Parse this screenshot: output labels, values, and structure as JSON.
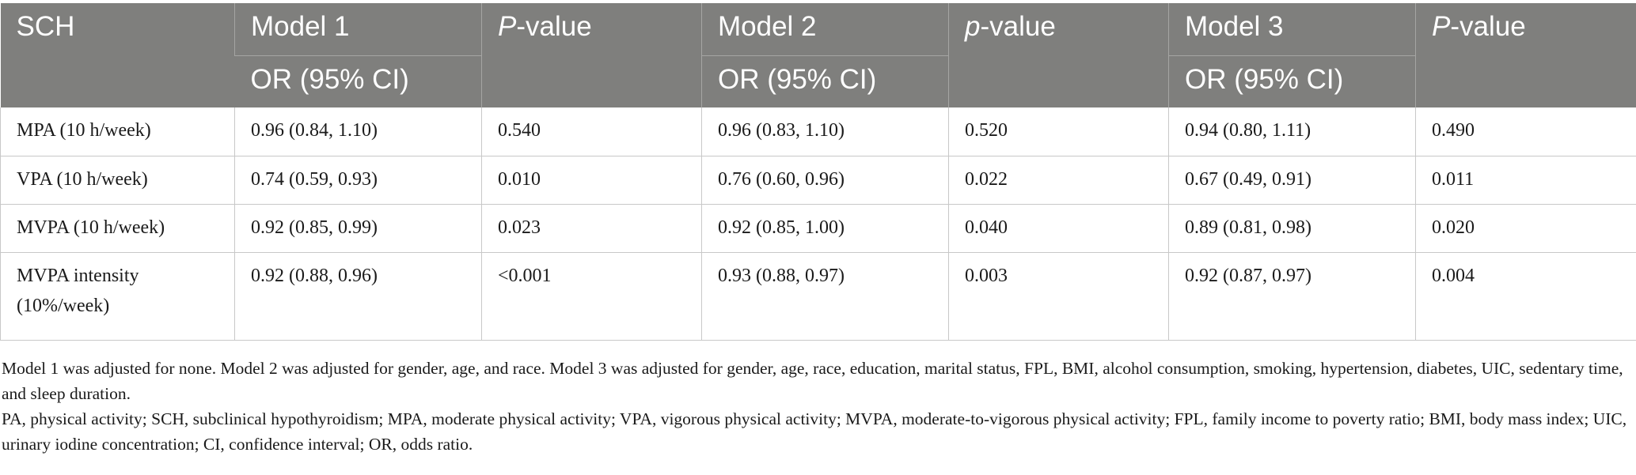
{
  "table": {
    "headers": {
      "row_label": "SCH",
      "model1": "Model 1",
      "p1_italic": "P",
      "p1_rest": "-value",
      "model2": "Model 2",
      "p2_italic": "p",
      "p2_rest": "-value",
      "model3": "Model 3",
      "p3_italic": "P",
      "p3_rest": "-value",
      "or_label_1": "OR (95% CI)",
      "or_label_2": "OR (95% CI)",
      "or_label_3": "OR (95% CI)"
    },
    "rows": [
      {
        "label": "MPA (10 h/week)",
        "label_line2": "",
        "m1_or": "0.96 (0.84, 1.10)",
        "m1_p": "0.540",
        "m2_or": "0.96 (0.83, 1.10)",
        "m2_p": "0.520",
        "m3_or": "0.94 (0.80, 1.11)",
        "m3_p": "0.490"
      },
      {
        "label": "VPA (10 h/week)",
        "label_line2": "",
        "m1_or": "0.74 (0.59, 0.93)",
        "m1_p": "0.010",
        "m2_or": "0.76 (0.60, 0.96)",
        "m2_p": "0.022",
        "m3_or": "0.67 (0.49, 0.91)",
        "m3_p": "0.011"
      },
      {
        "label": "MVPA (10 h/week)",
        "label_line2": "",
        "m1_or": "0.92 (0.85, 0.99)",
        "m1_p": "0.023",
        "m2_or": "0.92 (0.85, 1.00)",
        "m2_p": "0.040",
        "m3_or": "0.89 (0.81, 0.98)",
        "m3_p": "0.020"
      },
      {
        "label": "MVPA intensity",
        "label_line2": "(10%/week)",
        "m1_or": "0.92 (0.88, 0.96)",
        "m1_p": "<0.001",
        "m2_or": "0.93 (0.88, 0.97)",
        "m2_p": "0.003",
        "m3_or": "0.92 (0.87, 0.97)",
        "m3_p": "0.004"
      }
    ]
  },
  "notes": {
    "note1": "Model 1 was adjusted for none. Model 2 was adjusted for gender, age, and race. Model 3 was adjusted for gender, age, race, education, marital status, FPL, BMI, alcohol consumption, smoking, hypertension, diabetes, UIC, sedentary time, and sleep duration.",
    "note2": "PA, physical activity; SCH, subclinical hypothyroidism; MPA, moderate physical activity; VPA, vigorous physical activity; MVPA, moderate-to-vigorous physical activity; FPL, family income to poverty ratio; BMI, body mass index; UIC, urinary iodine concentration; CI, confidence interval; OR, odds ratio."
  },
  "colors": {
    "header_bg": "#7f7f7d",
    "header_text": "#ffffff",
    "grid_line": "#c8c8c8"
  }
}
